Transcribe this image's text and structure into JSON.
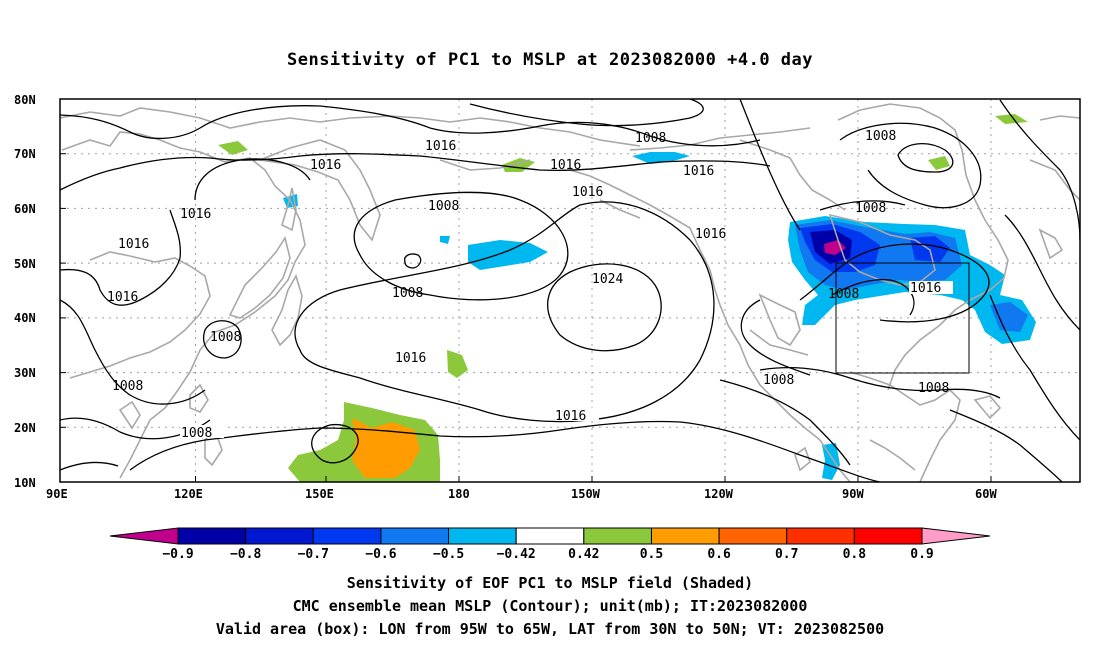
{
  "title": "Sensitivity of PC1 to MSLP at 2023082000 +4.0 day",
  "map": {
    "lat_labels": [
      "80N",
      "70N",
      "60N",
      "50N",
      "40N",
      "30N",
      "20N",
      "10N"
    ],
    "lon_labels": [
      "90E",
      "120E",
      "150E",
      "180",
      "150W",
      "120W",
      "90W",
      "60W"
    ],
    "lon_range": [
      "90E",
      "40W"
    ],
    "lat_range": [
      "10N",
      "80N"
    ],
    "contour_labels": [
      "1008",
      "1016",
      "1016",
      "1016",
      "1008",
      "1016",
      "1016",
      "1008",
      "1008",
      "1016",
      "1024",
      "1016",
      "1016",
      "1008",
      "1016",
      "1008",
      "1008",
      "1008",
      "1016",
      "1008",
      "1008"
    ],
    "valid_box": {
      "lon_from": "95W",
      "lon_to": "65W",
      "lat_from": "30N",
      "lat_to": "50N"
    },
    "colors": {
      "contour": "#000000",
      "coast": "#a8a8a8",
      "grid": "#a0a0a0"
    }
  },
  "colorbar": {
    "labels": [
      "-0.9",
      "-0.8",
      "-0.7",
      "-0.6",
      "-0.5",
      "-0.42",
      "0.42",
      "0.5",
      "0.6",
      "0.7",
      "0.8",
      "0.9"
    ],
    "colors": [
      "#c0008c",
      "#0000a8",
      "#0018d0",
      "#0038f0",
      "#1078f0",
      "#00b8f0",
      "#ffffff",
      "#8cc83c",
      "#ff9c00",
      "#ff6400",
      "#ff3000",
      "#ff0000",
      "#ff9cc8"
    ]
  },
  "captions": [
    "Sensitivity of EOF PC1 to MSLP field (Shaded)",
    "CMC ensemble mean MSLP (Contour); unit(mb); IT:2023082000",
    "Valid area (box): LON from 95W to 65W, LAT from 30N to 50N; VT: 2023082500"
  ]
}
